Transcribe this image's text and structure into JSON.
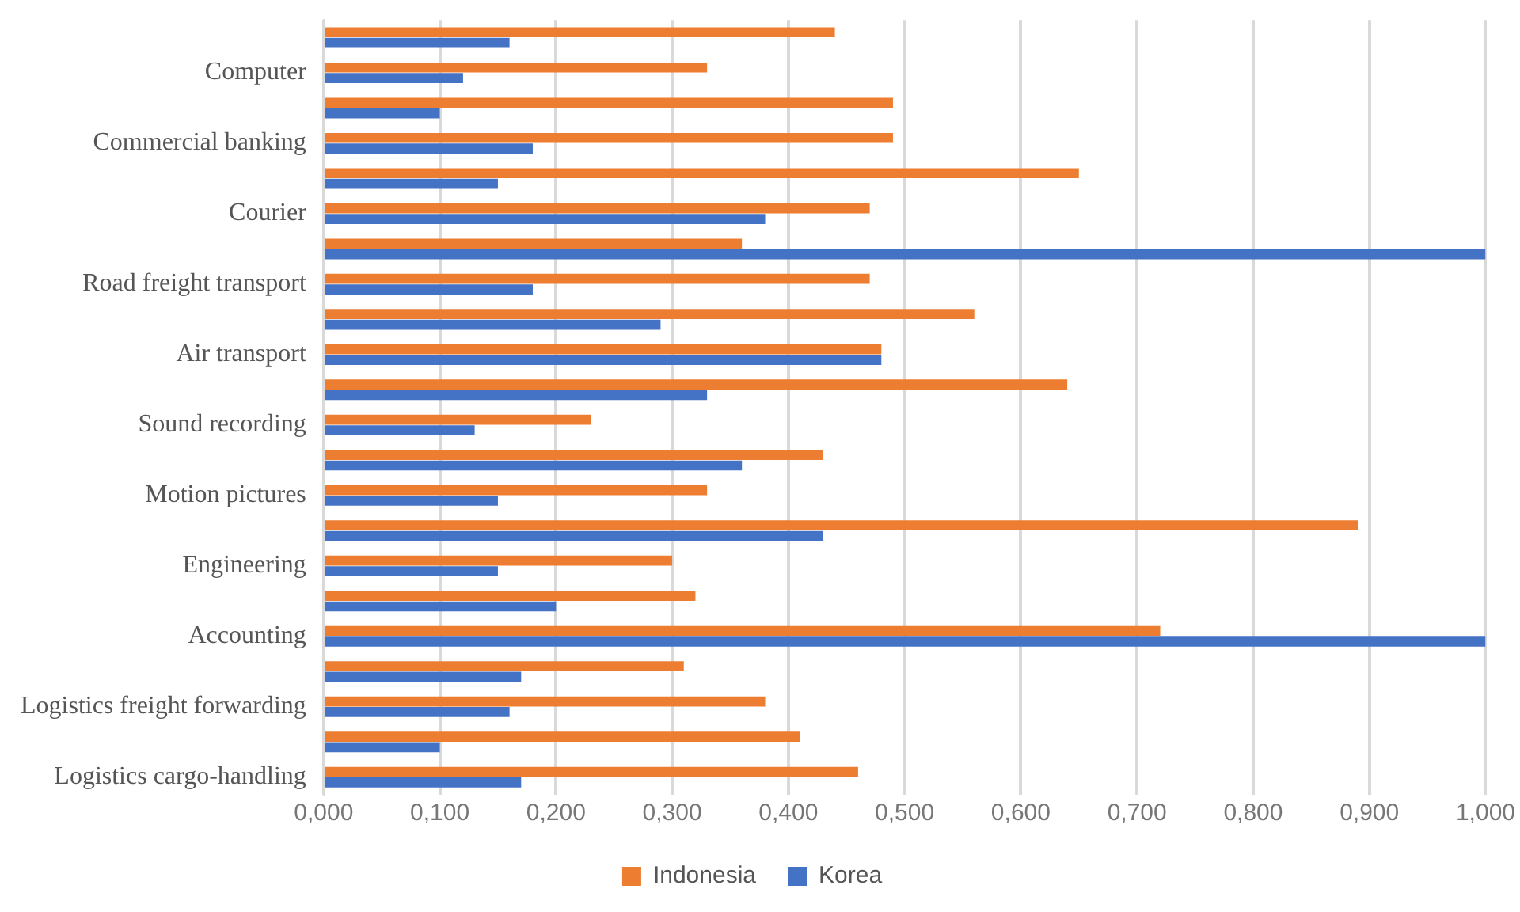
{
  "chart_data": {
    "type": "bar",
    "orientation": "horizontal",
    "categories": [
      null,
      "Computer",
      null,
      "Commercial banking",
      null,
      "Courier",
      null,
      "Road freight transport",
      null,
      "Air transport",
      null,
      "Sound recording",
      null,
      "Motion pictures",
      null,
      "Engineering",
      null,
      "Accounting",
      null,
      "Logistics freight forwarding",
      null,
      "Logistics cargo-handling"
    ],
    "series": [
      {
        "name": "Indonesia",
        "color": "#ed7d31",
        "values": [
          0.44,
          0.33,
          0.49,
          0.49,
          0.65,
          0.47,
          0.36,
          0.47,
          0.56,
          0.48,
          0.64,
          0.23,
          0.43,
          0.33,
          0.89,
          0.3,
          0.32,
          0.72,
          0.31,
          0.38,
          0.41,
          0.46
        ]
      },
      {
        "name": "Korea",
        "color": "#4472c4",
        "values": [
          0.16,
          0.12,
          0.1,
          0.18,
          0.15,
          0.38,
          1.0,
          0.18,
          0.29,
          0.48,
          0.33,
          0.13,
          0.36,
          0.15,
          0.43,
          0.15,
          0.2,
          1.0,
          0.17,
          0.16,
          0.1,
          0.17
        ]
      }
    ],
    "xlim": [
      0,
      1
    ],
    "xticks": [
      {
        "value": 0,
        "label": "0,000"
      },
      {
        "value": 0.1,
        "label": "0,100"
      },
      {
        "value": 0.2,
        "label": "0,200"
      },
      {
        "value": 0.3,
        "label": "0,300"
      },
      {
        "value": 0.4,
        "label": "0,400"
      },
      {
        "value": 0.5,
        "label": "0,500"
      },
      {
        "value": 0.6,
        "label": "0,600"
      },
      {
        "value": 0.7,
        "label": "0,700"
      },
      {
        "value": 0.8,
        "label": "0,800"
      },
      {
        "value": 0.9,
        "label": "0,900"
      },
      {
        "value": 1,
        "label": "1,000"
      }
    ],
    "grid": "x",
    "legend": "bottom"
  }
}
